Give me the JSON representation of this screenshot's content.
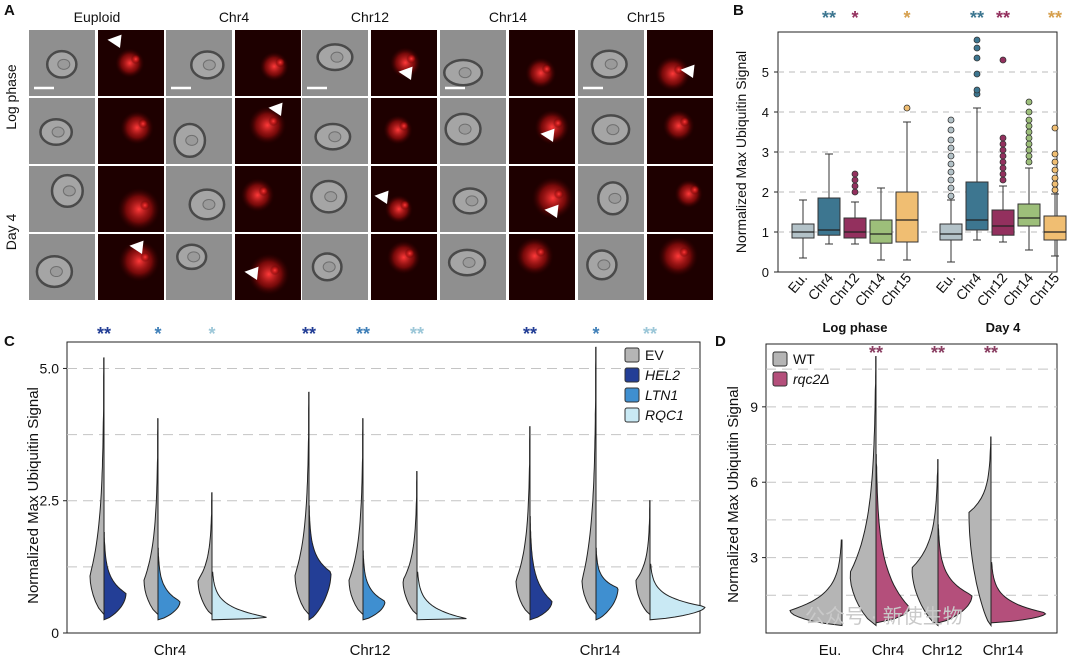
{
  "panels": {
    "a": "A",
    "b": "B",
    "c": "C",
    "d": "D"
  },
  "panel_a": {
    "column_labels": [
      "Euploid",
      "Chr4",
      "Chr12",
      "Chr14",
      "Chr15"
    ],
    "row_group_labels": [
      "Log phase",
      "Day 4"
    ]
  },
  "watermark": "公众号 · 新使生物",
  "chart_data": [
    {
      "id": "B",
      "type": "box",
      "title": "",
      "ylabel": "Normalized Max Ubiquitin Signal",
      "yticks": [
        0,
        1,
        2,
        3,
        4,
        5
      ],
      "ylim": [
        0,
        6.0
      ],
      "groups": [
        "Log phase",
        "Day 4"
      ],
      "categories": [
        "Eu.",
        "Chr4",
        "Chr12",
        "Chr14",
        "Chr15"
      ],
      "colors": [
        "#b3c2c8",
        "#3d7690",
        "#93305e",
        "#9dbf7a",
        "#f0be72"
      ],
      "series": [
        {
          "group": "Log phase",
          "boxes": [
            {
              "cat": "Eu.",
              "min": 0.35,
              "q1": 0.85,
              "median": 1.0,
              "q3": 1.2,
              "max": 1.8,
              "outliers": []
            },
            {
              "cat": "Chr4",
              "min": 0.7,
              "q1": 0.92,
              "median": 1.05,
              "q3": 1.85,
              "max": 2.95,
              "outliers": []
            },
            {
              "cat": "Chr12",
              "min": 0.7,
              "q1": 0.85,
              "median": 1.0,
              "q3": 1.35,
              "max": 1.75,
              "outliers": [
                2.0,
                2.15,
                2.3,
                2.45
              ]
            },
            {
              "cat": "Chr14",
              "min": 0.3,
              "q1": 0.72,
              "median": 0.95,
              "q3": 1.3,
              "max": 2.1,
              "outliers": []
            },
            {
              "cat": "Chr15",
              "min": 0.3,
              "q1": 0.75,
              "median": 1.3,
              "q3": 2.0,
              "max": 3.75,
              "outliers": [
                4.1
              ]
            }
          ]
        },
        {
          "group": "Day 4",
          "boxes": [
            {
              "cat": "Eu.",
              "min": 0.25,
              "q1": 0.8,
              "median": 0.95,
              "q3": 1.2,
              "max": 1.8,
              "outliers": [
                1.9,
                2.1,
                2.3,
                2.5,
                2.7,
                2.9,
                3.1,
                3.3,
                3.55,
                3.8
              ]
            },
            {
              "cat": "Chr4",
              "min": 0.8,
              "q1": 1.05,
              "median": 1.3,
              "q3": 2.25,
              "max": 4.1,
              "outliers": [
                4.45,
                4.55,
                4.95,
                5.35,
                5.6,
                5.8
              ]
            },
            {
              "cat": "Chr12",
              "min": 0.75,
              "q1": 0.92,
              "median": 1.15,
              "q3": 1.55,
              "max": 2.15,
              "outliers": [
                2.3,
                2.45,
                2.6,
                2.75,
                2.9,
                3.05,
                3.2,
                3.35,
                5.3
              ]
            },
            {
              "cat": "Chr14",
              "min": 0.55,
              "q1": 1.15,
              "median": 1.35,
              "q3": 1.7,
              "max": 2.6,
              "outliers": [
                2.75,
                2.9,
                3.05,
                3.2,
                3.35,
                3.5,
                3.65,
                3.8,
                4.0,
                4.25
              ]
            },
            {
              "cat": "Chr15",
              "min": 0.4,
              "q1": 0.8,
              "median": 1.0,
              "q3": 1.4,
              "max": 1.95,
              "outliers": [
                2.05,
                2.2,
                2.35,
                2.55,
                2.75,
                2.95,
                3.6
              ]
            }
          ]
        }
      ],
      "significance": [
        {
          "group": "Log phase",
          "cat": "Chr4",
          "label": "**"
        },
        {
          "group": "Log phase",
          "cat": "Chr12",
          "label": "*"
        },
        {
          "group": "Log phase",
          "cat": "Chr15",
          "label": "*"
        },
        {
          "group": "Day 4",
          "cat": "Chr4",
          "label": "**"
        },
        {
          "group": "Day 4",
          "cat": "Chr12",
          "label": "**"
        },
        {
          "group": "Day 4",
          "cat": "Chr15",
          "label": "**"
        }
      ]
    },
    {
      "id": "C",
      "type": "split-violin",
      "title": "",
      "ylabel": "Normalized Max Ubiquitin Signal",
      "yticks": [
        0,
        2.5,
        5.0
      ],
      "ytick_labels": [
        "0",
        "2.5",
        "5.0"
      ],
      "ylim": [
        0,
        5.5
      ],
      "categories": [
        "Chr4",
        "Chr12",
        "Chr14"
      ],
      "legend": {
        "position": "top-right",
        "entries": [
          "EV",
          "HEL2",
          "LTN1",
          "RQC1"
        ]
      },
      "colors": {
        "EV": "#b5b5b5",
        "HEL2": "#233e96",
        "LTN1": "#3f8fd0",
        "RQC1": "#c9e9f4"
      },
      "comparisons": [
        {
          "cat": "Chr4",
          "ev_max": 5.2,
          "ev_peak": 1.1,
          "mutant": "HEL2",
          "mut_max": 1.9,
          "mut_peak": 0.75,
          "label": "**"
        },
        {
          "cat": "Chr4",
          "ev_max": 4.05,
          "ev_peak": 1.0,
          "mutant": "LTN1",
          "mut_max": 1.6,
          "mut_peak": 0.6,
          "label": "*"
        },
        {
          "cat": "Chr4",
          "ev_max": 2.65,
          "ev_peak": 1.0,
          "mutant": "RQC1",
          "mut_max": 1.15,
          "mut_peak": 0.3,
          "label": "*"
        },
        {
          "cat": "Chr12",
          "ev_max": 4.55,
          "ev_peak": 1.1,
          "mutant": "HEL2",
          "mut_max": 2.4,
          "mut_peak": 1.15,
          "label": "**"
        },
        {
          "cat": "Chr12",
          "ev_max": 4.05,
          "ev_peak": 1.0,
          "mutant": "LTN1",
          "mut_max": 1.55,
          "mut_peak": 0.6,
          "label": "**"
        },
        {
          "cat": "Chr12",
          "ev_max": 3.05,
          "ev_peak": 1.0,
          "mutant": "RQC1",
          "mut_max": 1.15,
          "mut_peak": 0.25,
          "label": "**"
        },
        {
          "cat": "Chr14",
          "ev_max": 3.9,
          "ev_peak": 1.0,
          "mutant": "HEL2",
          "mut_max": 2.2,
          "mut_peak": 0.6,
          "label": "**"
        },
        {
          "cat": "Chr14",
          "ev_max": 5.4,
          "ev_peak": 1.0,
          "mutant": "LTN1",
          "mut_max": 1.6,
          "mut_peak": 0.85,
          "label": "*"
        },
        {
          "cat": "Chr14",
          "ev_max": 2.5,
          "ev_peak": 1.0,
          "mutant": "RQC1",
          "mut_max": 1.3,
          "mut_peak": 0.5,
          "label": "**"
        }
      ]
    },
    {
      "id": "D",
      "type": "split-violin",
      "title": "",
      "ylabel": "Normalized Max Ubiquitin Signal",
      "yticks": [
        3,
        6,
        9
      ],
      "ylim": [
        0,
        11.5
      ],
      "categories": [
        "Eu.",
        "Chr4",
        "Chr12",
        "Chr14"
      ],
      "legend": {
        "position": "top-left",
        "entries": [
          "WT",
          "rqc2Δ"
        ]
      },
      "colors": {
        "WT": "#b5b5b5",
        "rqc2Δ": "#b44f7b"
      },
      "comparisons": [
        {
          "cat": "Eu.",
          "wt_max": 3.7,
          "wt_peak": 0.9,
          "mut_max": null,
          "mut_peak": null,
          "label": ""
        },
        {
          "cat": "Chr4",
          "wt_max": 11.0,
          "wt_peak": 2.4,
          "mut_max": 7.1,
          "mut_peak": 1.0,
          "label": "**"
        },
        {
          "cat": "Chr12",
          "wt_max": 6.9,
          "wt_peak": 2.6,
          "mut_max": 4.3,
          "mut_peak": 1.5,
          "label": "**"
        },
        {
          "cat": "Chr14",
          "wt_max": 7.8,
          "wt_peak": 4.8,
          "mut_max": 2.8,
          "mut_peak": 0.8,
          "label": "**"
        }
      ]
    }
  ]
}
